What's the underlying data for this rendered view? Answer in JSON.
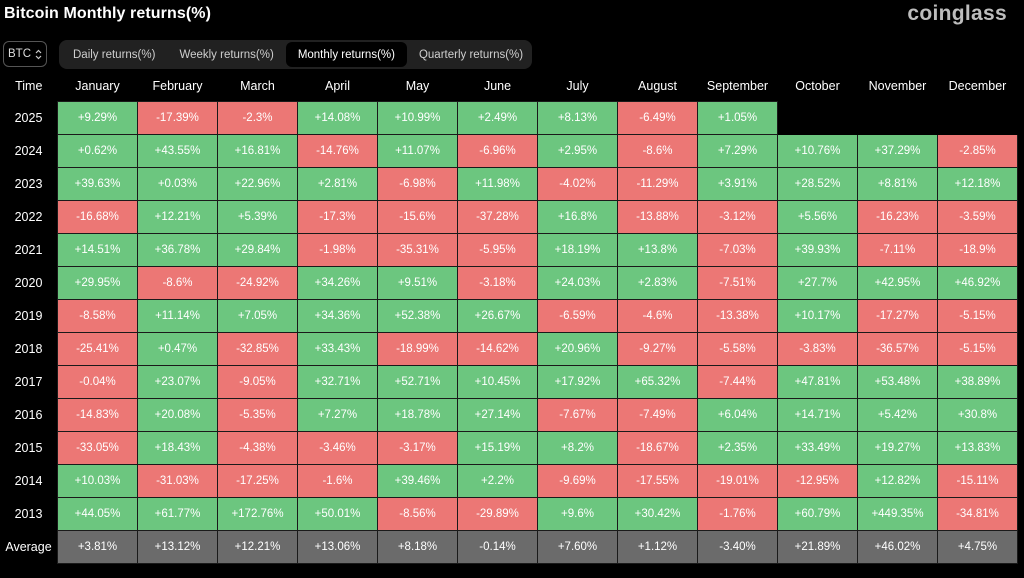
{
  "header": {
    "title": "Bitcoin Monthly returns(%)",
    "brand": "coinglass"
  },
  "asset_select": {
    "value": "BTC"
  },
  "tabs": [
    {
      "label": "Daily returns(%)",
      "active": false
    },
    {
      "label": "Weekly returns(%)",
      "active": false
    },
    {
      "label": "Monthly returns(%)",
      "active": true
    },
    {
      "label": "Quarterly returns(%)",
      "active": false
    }
  ],
  "table": {
    "time_header": "Time",
    "columns": [
      "January",
      "February",
      "March",
      "April",
      "May",
      "June",
      "July",
      "August",
      "September",
      "October",
      "November",
      "December"
    ],
    "rows": [
      {
        "year": "2025",
        "values": [
          "+9.29%",
          "-17.39%",
          "-2.3%",
          "+14.08%",
          "+10.99%",
          "+2.49%",
          "+8.13%",
          "-6.49%",
          "+1.05%",
          "",
          "",
          ""
        ]
      },
      {
        "year": "2024",
        "values": [
          "+0.62%",
          "+43.55%",
          "+16.81%",
          "-14.76%",
          "+11.07%",
          "-6.96%",
          "+2.95%",
          "-8.6%",
          "+7.29%",
          "+10.76%",
          "+37.29%",
          "-2.85%"
        ]
      },
      {
        "year": "2023",
        "values": [
          "+39.63%",
          "+0.03%",
          "+22.96%",
          "+2.81%",
          "-6.98%",
          "+11.98%",
          "-4.02%",
          "-11.29%",
          "+3.91%",
          "+28.52%",
          "+8.81%",
          "+12.18%"
        ]
      },
      {
        "year": "2022",
        "values": [
          "-16.68%",
          "+12.21%",
          "+5.39%",
          "-17.3%",
          "-15.6%",
          "-37.28%",
          "+16.8%",
          "-13.88%",
          "-3.12%",
          "+5.56%",
          "-16.23%",
          "-3.59%"
        ]
      },
      {
        "year": "2021",
        "values": [
          "+14.51%",
          "+36.78%",
          "+29.84%",
          "-1.98%",
          "-35.31%",
          "-5.95%",
          "+18.19%",
          "+13.8%",
          "-7.03%",
          "+39.93%",
          "-7.11%",
          "-18.9%"
        ]
      },
      {
        "year": "2020",
        "values": [
          "+29.95%",
          "-8.6%",
          "-24.92%",
          "+34.26%",
          "+9.51%",
          "-3.18%",
          "+24.03%",
          "+2.83%",
          "-7.51%",
          "+27.7%",
          "+42.95%",
          "+46.92%"
        ]
      },
      {
        "year": "2019",
        "values": [
          "-8.58%",
          "+11.14%",
          "+7.05%",
          "+34.36%",
          "+52.38%",
          "+26.67%",
          "-6.59%",
          "-4.6%",
          "-13.38%",
          "+10.17%",
          "-17.27%",
          "-5.15%"
        ]
      },
      {
        "year": "2018",
        "values": [
          "-25.41%",
          "+0.47%",
          "-32.85%",
          "+33.43%",
          "-18.99%",
          "-14.62%",
          "+20.96%",
          "-9.27%",
          "-5.58%",
          "-3.83%",
          "-36.57%",
          "-5.15%"
        ]
      },
      {
        "year": "2017",
        "values": [
          "-0.04%",
          "+23.07%",
          "-9.05%",
          "+32.71%",
          "+52.71%",
          "+10.45%",
          "+17.92%",
          "+65.32%",
          "-7.44%",
          "+47.81%",
          "+53.48%",
          "+38.89%"
        ]
      },
      {
        "year": "2016",
        "values": [
          "-14.83%",
          "+20.08%",
          "-5.35%",
          "+7.27%",
          "+18.78%",
          "+27.14%",
          "-7.67%",
          "-7.49%",
          "+6.04%",
          "+14.71%",
          "+5.42%",
          "+30.8%"
        ]
      },
      {
        "year": "2015",
        "values": [
          "-33.05%",
          "+18.43%",
          "-4.38%",
          "-3.46%",
          "-3.17%",
          "+15.19%",
          "+8.2%",
          "-18.67%",
          "+2.35%",
          "+33.49%",
          "+19.27%",
          "+13.83%"
        ]
      },
      {
        "year": "2014",
        "values": [
          "+10.03%",
          "-31.03%",
          "-17.25%",
          "-1.6%",
          "+39.46%",
          "+2.2%",
          "-9.69%",
          "-17.55%",
          "-19.01%",
          "-12.95%",
          "+12.82%",
          "-15.11%"
        ]
      },
      {
        "year": "2013",
        "values": [
          "+44.05%",
          "+61.77%",
          "+172.76%",
          "+50.01%",
          "-8.56%",
          "-29.89%",
          "+9.6%",
          "+30.42%",
          "-1.76%",
          "+60.79%",
          "+449.35%",
          "-34.81%"
        ]
      }
    ],
    "average": {
      "label": "Average",
      "values": [
        "+3.81%",
        "+13.12%",
        "+12.21%",
        "+13.06%",
        "+8.18%",
        "-0.14%",
        "+7.60%",
        "+1.12%",
        "-3.40%",
        "+21.89%",
        "+46.02%",
        "+4.75%"
      ]
    }
  },
  "colors": {
    "positive": "#6cc67f",
    "negative": "#ec7775",
    "average": "#6b6b6b",
    "background": "#000000"
  }
}
